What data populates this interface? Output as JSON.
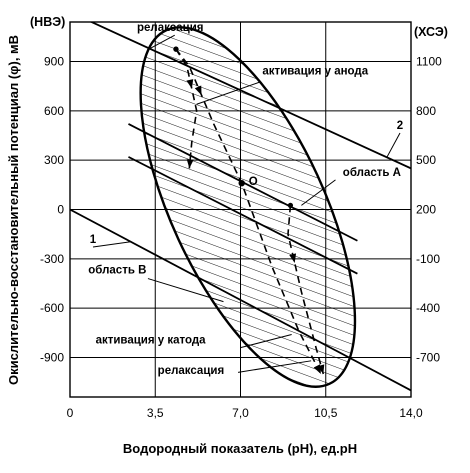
{
  "axes": {
    "x": {
      "title": "Водородный показатель (рН),  ед.рН",
      "min": 0,
      "max": 14,
      "ticks": [
        0,
        3.5,
        7,
        10.5,
        14
      ],
      "tick_labels": [
        "0",
        "3,5",
        "7,0",
        "10,5",
        "14,0"
      ]
    },
    "y_left": {
      "title": "Окислительно-восстановительный потенциал (φ), мВ",
      "scale_label": "(НВЭ)",
      "min": -1140,
      "max": 1140,
      "ticks": [
        900,
        600,
        300,
        0,
        -300,
        -600,
        -900
      ],
      "tick_labels": [
        "900",
        "600",
        "300",
        "0",
        "-300",
        "-600",
        "-900"
      ]
    },
    "y_right": {
      "scale_label": "(ХСЭ)",
      "offset": 200,
      "ticks": [
        1100,
        800,
        500,
        200,
        -100,
        -400,
        -700
      ],
      "tick_labels": [
        "1100",
        "800",
        "500",
        "200",
        "-100",
        "-400",
        "-700"
      ]
    },
    "grid": true
  },
  "lines": [
    {
      "label": "1",
      "points": [
        [
          0,
          0
        ],
        [
          14,
          -1100
        ]
      ]
    },
    {
      "label": "2",
      "points": [
        [
          0,
          1200
        ],
        [
          14,
          250
        ]
      ]
    },
    {
      "label": "",
      "points": [
        [
          2.4,
          520
        ],
        [
          11.8,
          -190
        ]
      ]
    },
    {
      "label": "",
      "points": [
        [
          2.4,
          320
        ],
        [
          11.8,
          -390
        ]
      ]
    }
  ],
  "ellipse": {
    "center": [
      7.3,
      15
    ],
    "semi_major_ph": 3.35,
    "semi_major_mv": 1075,
    "semi_minor_ph": 1.35,
    "semi_minor_mv": 420
  },
  "point_o": {
    "label": "О",
    "coords": [
      7.05,
      160
    ]
  },
  "flow_paths": [
    {
      "points": [
        [
          4.35,
          975
        ],
        [
          4.8,
          870
        ],
        [
          5.2,
          600
        ],
        [
          5.0,
          410
        ],
        [
          4.9,
          250
        ]
      ]
    },
    {
      "points": [
        [
          4.35,
          975
        ],
        [
          4.9,
          870
        ],
        [
          5.9,
          520
        ],
        [
          7.05,
          160
        ],
        [
          8.3,
          -350
        ],
        [
          9.4,
          -740
        ],
        [
          10.3,
          -1000
        ]
      ]
    },
    {
      "points": [
        [
          9.05,
          25
        ],
        [
          8.95,
          -150
        ],
        [
          9.5,
          -500
        ],
        [
          10.1,
          -840
        ],
        [
          10.4,
          -1000
        ]
      ]
    }
  ],
  "annotations": [
    {
      "text": "релаксация",
      "text_at": [
        2.75,
        1085
      ],
      "leader": [
        [
          4.3,
          1060
        ],
        [
          3.3,
          980
        ]
      ]
    },
    {
      "text": "активация у анода",
      "text_at": [
        7.9,
        820
      ],
      "leader": [
        [
          7.8,
          775
        ],
        [
          5.2,
          640
        ]
      ]
    },
    {
      "text": "область А",
      "text_at": [
        11.2,
        205
      ],
      "leader": [
        [
          10.9,
          180
        ],
        [
          9.5,
          25
        ]
      ]
    },
    {
      "text": "область В",
      "text_at": [
        0.75,
        -390
      ],
      "leader": [
        [
          3.2,
          -420
        ],
        [
          6.3,
          -560
        ]
      ]
    },
    {
      "text": "активация у катода",
      "text_at": [
        1.05,
        -815
      ],
      "leader": [
        [
          7.0,
          -840
        ],
        [
          9.1,
          -760
        ]
      ]
    },
    {
      "text": "релаксация",
      "text_at": [
        3.6,
        -1000
      ],
      "leader": [
        [
          6.9,
          -990
        ],
        [
          9.9,
          -920
        ]
      ]
    }
  ]
}
